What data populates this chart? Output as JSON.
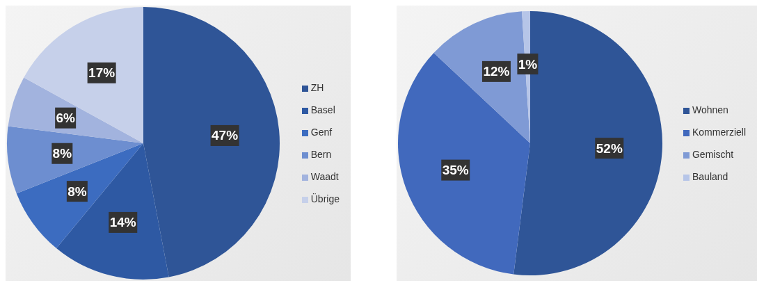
{
  "chart_data": [
    {
      "type": "pie",
      "categories": [
        "ZH",
        "Basel",
        "Genf",
        "Bern",
        "Waadt",
        "Übrige"
      ],
      "values": [
        47,
        14,
        8,
        8,
        6,
        17
      ],
      "colors": [
        "#2f5597",
        "#2e59a3",
        "#3c6cc0",
        "#6d8ed0",
        "#a2b3de",
        "#c6d0ea"
      ],
      "value_labels": [
        "47%",
        "14%",
        "8%",
        "8%",
        "6%",
        "17%"
      ],
      "legend": "right"
    },
    {
      "type": "pie",
      "categories": [
        "Wohnen",
        "Kommerziell",
        "Gemischt",
        "Bauland"
      ],
      "values": [
        52,
        35,
        12,
        1
      ],
      "colors": [
        "#2f5597",
        "#4169bd",
        "#7f9ad5",
        "#b6c5e8"
      ],
      "value_labels": [
        "52%",
        "35%",
        "12%",
        "1%"
      ],
      "legend": "right"
    }
  ]
}
